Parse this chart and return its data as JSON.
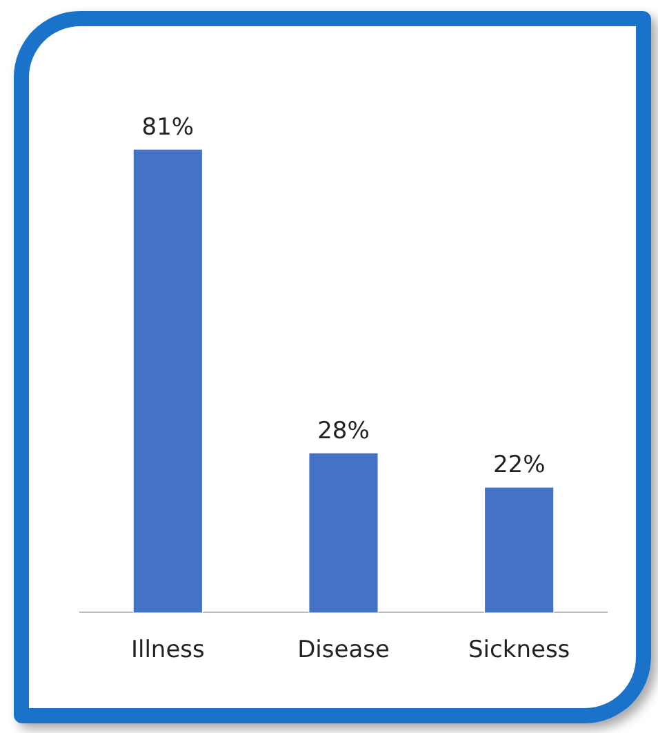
{
  "chart_data": {
    "type": "bar",
    "categories": [
      "Illness",
      "Disease",
      "Sickness"
    ],
    "values": [
      81,
      28,
      22
    ],
    "value_labels": [
      "81%",
      "28%",
      "22%"
    ],
    "color": "#4472c4",
    "relative": false,
    "grid": false,
    "legend": false
  }
}
